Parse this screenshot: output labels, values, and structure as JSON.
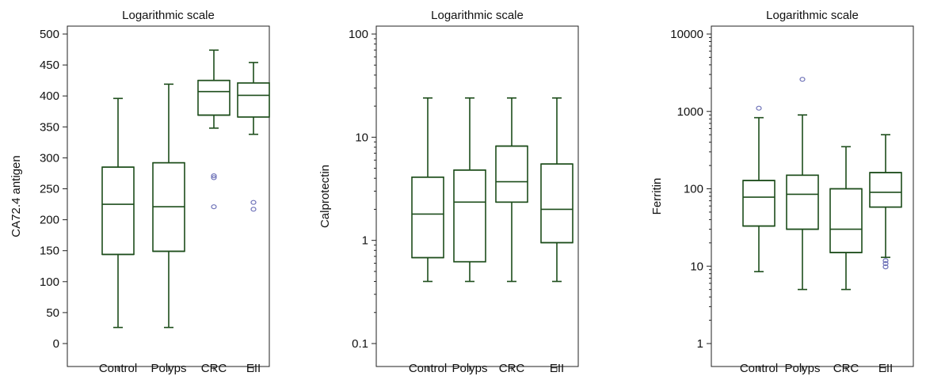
{
  "chart_data": [
    {
      "type": "box",
      "title": "Logarithmic scale",
      "ylabel": "CA72.4 antigen",
      "xlabel": "",
      "y_scale": "linear",
      "ylim": [
        0,
        500
      ],
      "yticks": [
        0,
        50,
        100,
        150,
        200,
        250,
        300,
        350,
        400,
        450,
        500
      ],
      "ytick_labels": [
        "0",
        "50",
        "100",
        "150",
        "200",
        "250",
        "300",
        "350",
        "400",
        "450",
        "500"
      ],
      "categories": [
        "Control",
        "Polyps",
        "CRC",
        "EII"
      ],
      "boxes": [
        {
          "category": "Control",
          "whisker_low": 26,
          "q1": 144,
          "median": 225,
          "q3": 285,
          "whisker_high": 396,
          "outliers": []
        },
        {
          "category": "Polyps",
          "whisker_low": 26,
          "q1": 149,
          "median": 221,
          "q3": 292,
          "whisker_high": 419,
          "outliers": []
        },
        {
          "category": "CRC",
          "whisker_low": 348,
          "q1": 369,
          "median": 407,
          "q3": 425,
          "whisker_high": 474,
          "outliers": [
            221,
            268,
            271
          ]
        },
        {
          "category": "EII",
          "whisker_low": 338,
          "q1": 366,
          "median": 401,
          "q3": 421,
          "whisker_high": 454,
          "outliers": [
            217,
            228
          ]
        }
      ]
    },
    {
      "type": "box",
      "title": "Logarithmic scale",
      "ylabel": "Calprotectin",
      "xlabel": "",
      "y_scale": "log",
      "ylim": [
        0.1,
        100
      ],
      "yticks": [
        0.1,
        1,
        10,
        100
      ],
      "ytick_labels": [
        "0.1",
        "1",
        "10",
        "100"
      ],
      "categories": [
        "Control",
        "Polyps",
        "CRC",
        "EII"
      ],
      "boxes": [
        {
          "category": "Control",
          "whisker_low": 0.4,
          "q1": 0.68,
          "median": 1.8,
          "q3": 4.1,
          "whisker_high": 24,
          "outliers": []
        },
        {
          "category": "Polyps",
          "whisker_low": 0.4,
          "q1": 0.62,
          "median": 2.35,
          "q3": 4.8,
          "whisker_high": 24,
          "outliers": []
        },
        {
          "category": "CRC",
          "whisker_low": 0.4,
          "q1": 2.35,
          "median": 3.7,
          "q3": 8.2,
          "whisker_high": 24,
          "outliers": []
        },
        {
          "category": "EII",
          "whisker_low": 0.4,
          "q1": 0.95,
          "median": 2.0,
          "q3": 5.5,
          "whisker_high": 24,
          "outliers": []
        }
      ]
    },
    {
      "type": "box",
      "title": "Logarithmic scale",
      "ylabel": "Ferritin",
      "xlabel": "",
      "y_scale": "log",
      "ylim": [
        1,
        10000
      ],
      "yticks": [
        1,
        10,
        100,
        1000,
        10000
      ],
      "ytick_labels": [
        "1",
        "10",
        "100",
        "1000",
        "10000"
      ],
      "categories": [
        "Control",
        "Polyps",
        "CRC",
        "EII"
      ],
      "boxes": [
        {
          "category": "Control",
          "whisker_low": 8.5,
          "q1": 33,
          "median": 78,
          "q3": 128,
          "whisker_high": 830,
          "outliers": [
            1100
          ]
        },
        {
          "category": "Polyps",
          "whisker_low": 5,
          "q1": 30,
          "median": 85,
          "q3": 150,
          "whisker_high": 900,
          "outliers": [
            2600
          ]
        },
        {
          "category": "CRC",
          "whisker_low": 5,
          "q1": 15,
          "median": 30,
          "q3": 100,
          "whisker_high": 350,
          "outliers": []
        },
        {
          "category": "EII",
          "whisker_low": 13,
          "q1": 58,
          "median": 90,
          "q3": 162,
          "whisker_high": 500,
          "outliers": [
            9.8,
            10.8,
            11.8
          ]
        }
      ]
    }
  ],
  "colors": {
    "box": "#1d4d1b",
    "outlier": "#6e72b8",
    "axis": "#222222",
    "text": "#111111"
  }
}
